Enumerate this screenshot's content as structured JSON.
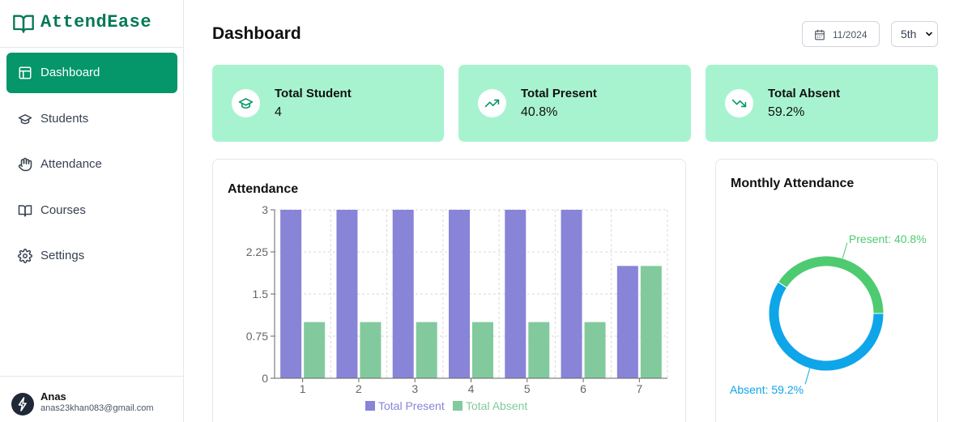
{
  "app": {
    "name": "AttendEase"
  },
  "sidebar": {
    "items": [
      {
        "label": "Dashboard",
        "icon": "layout-icon",
        "active": true
      },
      {
        "label": "Students",
        "icon": "graduation-cap-icon",
        "active": false
      },
      {
        "label": "Attendance",
        "icon": "hand-icon",
        "active": false
      },
      {
        "label": "Courses",
        "icon": "book-open-icon",
        "active": false
      },
      {
        "label": "Settings",
        "icon": "gear-icon",
        "active": false
      }
    ]
  },
  "user": {
    "name": "Anas",
    "email": "anas23khan083@gmail.com"
  },
  "header": {
    "title": "Dashboard",
    "month": "11/2024",
    "grade": "5th"
  },
  "cards": [
    {
      "title": "Total Student",
      "value": "4",
      "icon": "graduation-cap-icon"
    },
    {
      "title": "Total Present",
      "value": "40.8%",
      "icon": "trending-up-icon"
    },
    {
      "title": "Total Absent",
      "value": "59.2%",
      "icon": "trending-down-icon"
    }
  ],
  "colors": {
    "accent": "#059669",
    "card_bg": "#a7f3d0",
    "present": "#8884d8",
    "absent": "#82ca9d",
    "pie_present": "#4ecb71",
    "pie_absent": "#0ea5e9"
  },
  "charts": {
    "attendance_title": "Attendance",
    "monthly_title": "Monthly Attendance"
  },
  "chart_data": [
    {
      "type": "bar",
      "title": "Attendance",
      "categories": [
        "1",
        "2",
        "3",
        "4",
        "5",
        "6",
        "7"
      ],
      "series": [
        {
          "name": "Total Present",
          "values": [
            3,
            3,
            3,
            3,
            3,
            3,
            2
          ]
        },
        {
          "name": "Total Absent",
          "values": [
            1,
            1,
            1,
            1,
            1,
            1,
            2
          ]
        }
      ],
      "yticks": [
        "0",
        "0.75",
        "1.5",
        "2.25",
        "3"
      ],
      "ylim": [
        0,
        3
      ],
      "grid": true,
      "legend": "bottom"
    },
    {
      "type": "pie",
      "title": "Monthly Attendance",
      "slices": [
        {
          "name": "Present",
          "value": 40.8,
          "label": "Present: 40.8%"
        },
        {
          "name": "Absent",
          "value": 59.2,
          "label": "Absent: 59.2%"
        }
      ],
      "donut": true
    }
  ]
}
